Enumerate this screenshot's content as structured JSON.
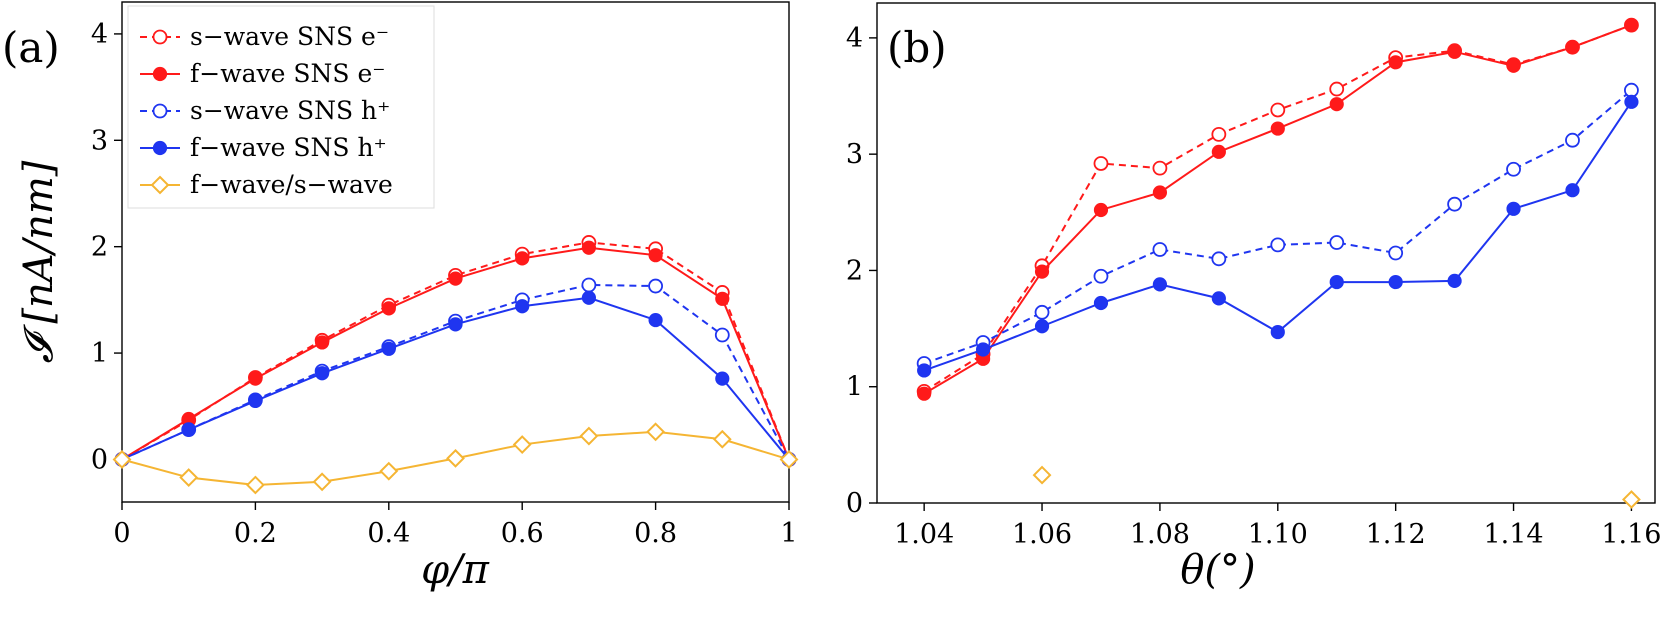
{
  "colors": {
    "red": "#ff1a1a",
    "blue": "#1f35f0",
    "orange": "#f5b533"
  },
  "legend": [
    {
      "label": "s−wave SNS e⁻",
      "color": "red",
      "style": "dashed",
      "marker": "open-circle"
    },
    {
      "label": "f−wave SNS e⁻",
      "color": "red",
      "style": "solid",
      "marker": "filled-circle"
    },
    {
      "label": "s−wave SNS h⁺",
      "color": "blue",
      "style": "dashed",
      "marker": "open-circle"
    },
    {
      "label": "f−wave SNS h⁺",
      "color": "blue",
      "style": "solid",
      "marker": "filled-circle"
    },
    {
      "label": "f−wave/s−wave",
      "color": "orange",
      "style": "solid",
      "marker": "open-diamond"
    }
  ],
  "chart_data": [
    {
      "panel_label": "(a)",
      "type": "line",
      "xlabel": "φ/π",
      "ylabel": "𝓘 [nA/nm]",
      "xlim": [
        0,
        1
      ],
      "ylim": [
        -0.4,
        4.3
      ],
      "xticks": [
        0,
        0.2,
        0.4,
        0.6,
        0.8,
        1
      ],
      "xtick_labels": [
        "0",
        "0.2",
        "0.4",
        "0.6",
        "0.8",
        "1"
      ],
      "yticks": [
        0,
        1,
        2,
        3,
        4
      ],
      "ytick_labels": [
        "0",
        "1",
        "2",
        "3",
        "4"
      ],
      "x": [
        0,
        0.1,
        0.2,
        0.3,
        0.4,
        0.5,
        0.6,
        0.7,
        0.8,
        0.9,
        1.0
      ],
      "series": [
        {
          "name": "s−wave SNS e⁻",
          "values": [
            0,
            0.37,
            0.77,
            1.12,
            1.45,
            1.73,
            1.93,
            2.04,
            1.98,
            1.57,
            0
          ]
        },
        {
          "name": "f−wave SNS e⁻",
          "values": [
            0,
            0.38,
            0.76,
            1.1,
            1.42,
            1.7,
            1.89,
            1.99,
            1.92,
            1.51,
            0
          ]
        },
        {
          "name": "s−wave SNS h⁺",
          "values": [
            0,
            0.28,
            0.56,
            0.83,
            1.06,
            1.3,
            1.5,
            1.64,
            1.63,
            1.17,
            0
          ]
        },
        {
          "name": "f−wave SNS h⁺",
          "values": [
            0,
            0.28,
            0.55,
            0.81,
            1.04,
            1.27,
            1.44,
            1.52,
            1.31,
            0.76,
            0
          ]
        },
        {
          "name": "f−wave/s−wave",
          "values": [
            0,
            -0.17,
            -0.24,
            -0.21,
            -0.11,
            0.01,
            0.14,
            0.22,
            0.26,
            0.19,
            0
          ]
        }
      ]
    },
    {
      "panel_label": "(b)",
      "type": "line",
      "xlabel": "θ(°)",
      "ylabel": "",
      "xlim": [
        1.032,
        1.164
      ],
      "ylim": [
        0,
        4.3
      ],
      "xticks": [
        1.04,
        1.06,
        1.08,
        1.1,
        1.12,
        1.14,
        1.16
      ],
      "xtick_labels": [
        "1.04",
        "1.06",
        "1.08",
        "1.10",
        "1.12",
        "1.14",
        "1.16"
      ],
      "yticks": [
        0,
        1,
        2,
        3,
        4
      ],
      "ytick_labels": [
        "0",
        "1",
        "2",
        "3",
        "4"
      ],
      "x": [
        1.04,
        1.05,
        1.06,
        1.07,
        1.08,
        1.09,
        1.1,
        1.11,
        1.12,
        1.13,
        1.14,
        1.15,
        1.16
      ],
      "series": [
        {
          "name": "s−wave SNS e⁻",
          "values": [
            0.96,
            1.28,
            2.04,
            2.92,
            2.88,
            3.17,
            3.38,
            3.56,
            3.83,
            3.89,
            3.77,
            3.92,
            4.11
          ]
        },
        {
          "name": "f−wave SNS e⁻",
          "values": [
            0.94,
            1.24,
            1.99,
            2.52,
            2.67,
            3.02,
            3.22,
            3.43,
            3.79,
            3.88,
            3.76,
            3.92,
            4.11
          ]
        },
        {
          "name": "s−wave SNS h⁺",
          "values": [
            1.2,
            1.38,
            1.64,
            1.95,
            2.18,
            2.1,
            2.22,
            2.24,
            2.15,
            2.57,
            2.87,
            3.12,
            3.55
          ]
        },
        {
          "name": "f−wave SNS h⁺",
          "values": [
            1.14,
            1.32,
            1.52,
            1.72,
            1.88,
            1.76,
            1.47,
            1.9,
            1.9,
            1.91,
            2.53,
            2.69,
            3.45
          ]
        },
        {
          "name": "f−wave/s−wave",
          "x": [
            1.06,
            1.16
          ],
          "values": [
            0.24,
            0.03
          ]
        }
      ]
    }
  ]
}
